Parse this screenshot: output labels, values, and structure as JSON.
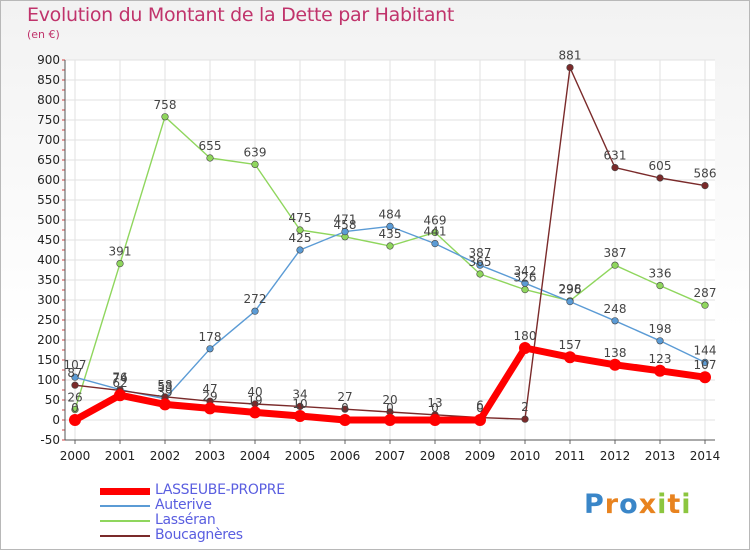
{
  "title": "Evolution du Montant de la Dette par Habitant",
  "unit": "(en €)",
  "logo": {
    "text": "Proxiti",
    "letters": [
      "P",
      "r",
      "o",
      "x",
      "i",
      "t",
      "i"
    ],
    "colors": [
      "#3a86c8",
      "#e8831f",
      "#3a86c8",
      "#e8831f",
      "#8cc63f",
      "#e8831f",
      "#8cc63f"
    ]
  },
  "chart_data": {
    "type": "line",
    "x": [
      "2000",
      "2001",
      "2002",
      "2003",
      "2004",
      "2005",
      "2006",
      "2007",
      "2008",
      "2009",
      "2010",
      "2011",
      "2012",
      "2013",
      "2014"
    ],
    "ylim": [
      -50,
      900
    ],
    "yticks": [
      "-50",
      "0",
      "50",
      "100",
      "150",
      "200",
      "250",
      "300",
      "350",
      "400",
      "450",
      "500",
      "550",
      "600",
      "650",
      "700",
      "750",
      "800",
      "850",
      "900"
    ],
    "grid": true,
    "legend_position": "bottom-left",
    "series": [
      {
        "name": "LASSEUBE-PROPRE",
        "color": "#ff0000",
        "values": [
          0,
          62,
          39,
          29,
          19,
          10,
          0,
          0,
          0,
          0,
          180,
          157,
          138,
          123,
          107
        ],
        "labels": [
          "0",
          "62",
          "39",
          "29",
          "19",
          "10",
          "0",
          "0",
          "0",
          "0",
          "180",
          "157",
          "138",
          "123",
          "107"
        ]
      },
      {
        "name": "Auterive",
        "color": "#5b9bd5",
        "values": [
          107,
          76,
          53,
          178,
          272,
          425,
          471,
          484,
          441,
          387,
          342,
          296,
          248,
          198,
          144
        ],
        "labels": [
          "107",
          "76",
          "53",
          "178",
          "272",
          "425",
          "471",
          "484",
          "441",
          "387",
          "342",
          "296",
          "248",
          "198",
          "144"
        ]
      },
      {
        "name": "Lasséran",
        "color": "#8fd65d",
        "values": [
          26,
          391,
          758,
          655,
          639,
          475,
          458,
          435,
          469,
          365,
          326,
          298,
          387,
          336,
          287
        ],
        "labels": [
          "26",
          "391",
          "758",
          "655",
          "639",
          "475",
          "458",
          "435",
          "469",
          "365",
          "326",
          "298",
          "387",
          "336",
          "287"
        ]
      },
      {
        "name": "Boucagnères",
        "color": "#7a2a2a",
        "values": [
          87,
          74,
          58,
          47,
          40,
          34,
          27,
          20,
          13,
          6,
          2,
          881,
          631,
          605,
          586
        ],
        "labels": [
          "87",
          "74",
          "58",
          "47",
          "40",
          "34",
          "27",
          "20",
          "13",
          "6",
          "2",
          "881",
          "631",
          "605",
          "586"
        ]
      }
    ]
  }
}
